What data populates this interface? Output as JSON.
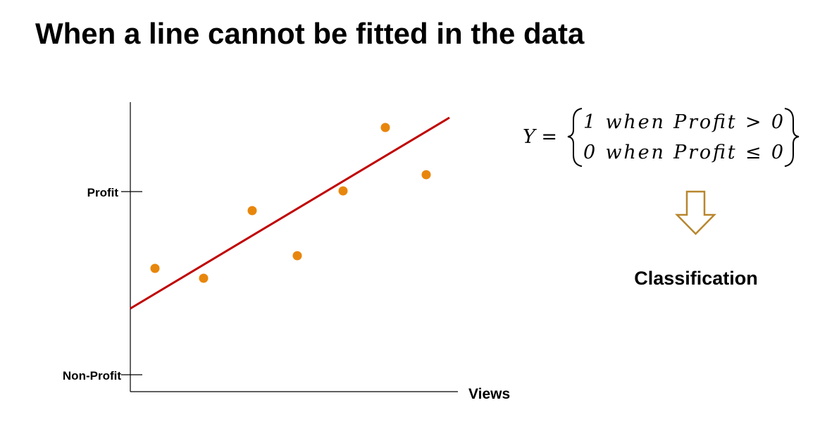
{
  "title": "When a line cannot be fitted in the data",
  "chart": {
    "y_labels": [
      "Profit",
      "Non-Profit"
    ],
    "x_label": "Views"
  },
  "formula": {
    "lhs": "Y =",
    "cases": [
      "1 when Profit > 0",
      "0 when Profit ≤ 0"
    ]
  },
  "result": "Classification"
}
